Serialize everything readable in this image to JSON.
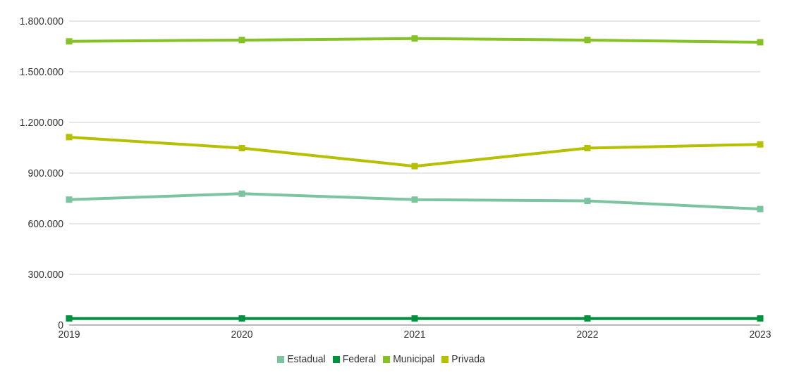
{
  "chart_data": {
    "type": "line",
    "categories": [
      "2019",
      "2020",
      "2021",
      "2022",
      "2023"
    ],
    "series": [
      {
        "name": "Estadual",
        "color": "#7cc49f",
        "values": [
          743000,
          778000,
          743000,
          735000,
          687000
        ]
      },
      {
        "name": "Federal",
        "color": "#00913f",
        "values": [
          39000,
          39000,
          39000,
          39000,
          39000
        ]
      },
      {
        "name": "Municipal",
        "color": "#84c225",
        "values": [
          1680000,
          1688000,
          1697000,
          1688000,
          1675000
        ]
      },
      {
        "name": "Privada",
        "color": "#b5c000",
        "values": [
          1113000,
          1048000,
          941000,
          1048000,
          1070000
        ]
      }
    ],
    "ylim": [
      0,
      1800000
    ],
    "yticks": [
      {
        "value": 0,
        "label": "0"
      },
      {
        "value": 300000,
        "label": "300.000"
      },
      {
        "value": 600000,
        "label": "600.000"
      },
      {
        "value": 900000,
        "label": "900.000"
      },
      {
        "value": 1200000,
        "label": "1.200.000"
      },
      {
        "value": 1500000,
        "label": "1.500.000"
      },
      {
        "value": 1800000,
        "label": "1.800.000"
      }
    ],
    "grid": "y",
    "legend": "bottom",
    "marker": "square",
    "line_style": "solid"
  }
}
